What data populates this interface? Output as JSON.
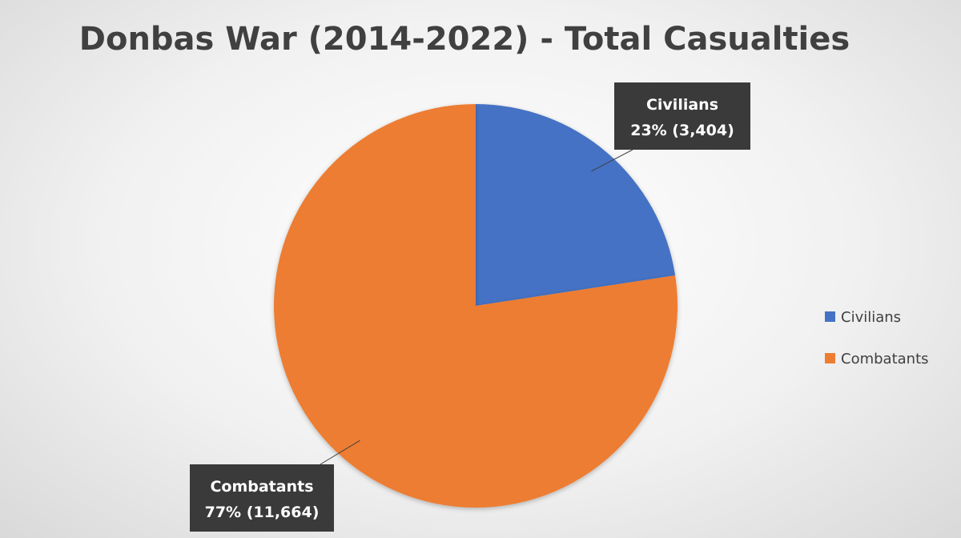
{
  "chart_data": {
    "type": "pie",
    "title": "Donbas War (2014-2022) - Total Casualties",
    "series": [
      {
        "name": "",
        "slices": [
          {
            "label": "Civilians",
            "value": 3404,
            "percent_label": "23% (3,404)",
            "color": "#4472C4"
          },
          {
            "label": "Combatants",
            "value": 11664,
            "percent_label": "77% (11,664)",
            "color": "#ED7D31"
          }
        ]
      }
    ],
    "legend": {
      "position": "right",
      "entries": [
        "Civilians",
        "Combatants"
      ]
    },
    "start_angle_deg": 0,
    "direction": "clockwise"
  }
}
